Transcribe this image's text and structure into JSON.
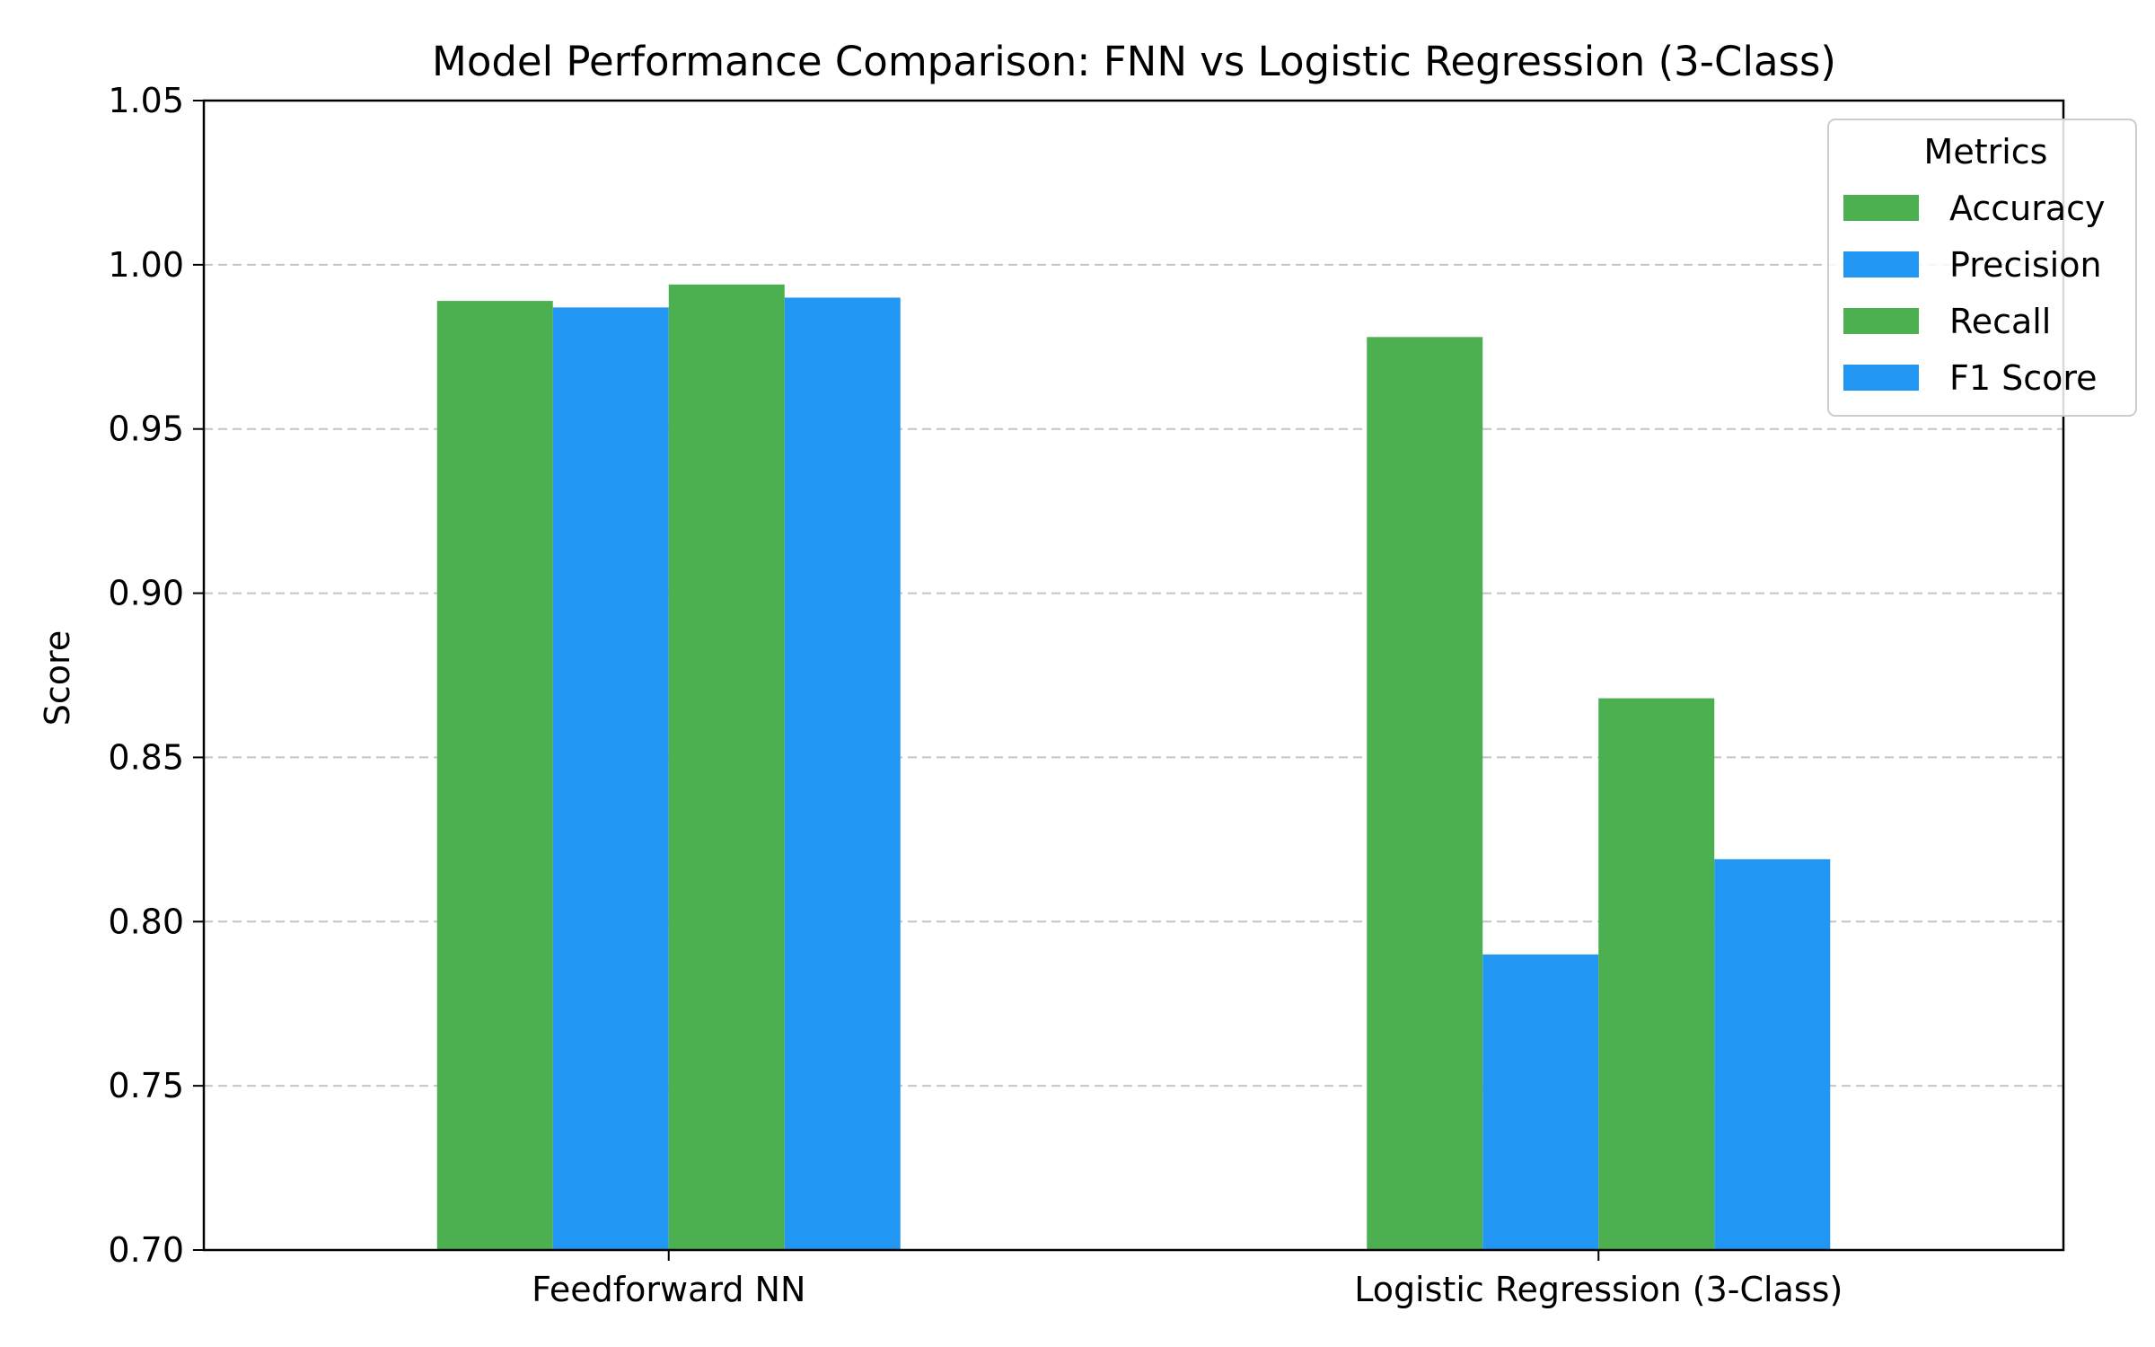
{
  "chart_data": {
    "type": "bar",
    "title": "Model Performance Comparison: FNN vs Logistic Regression (3-Class)",
    "xlabel": "",
    "ylabel": "Score",
    "ylim": [
      0.7,
      1.05
    ],
    "yticks": [
      "0.70",
      "0.75",
      "0.80",
      "0.85",
      "0.90",
      "0.95",
      "1.00",
      "1.05"
    ],
    "grid": "y-dashed",
    "categories": [
      "Feedforward NN",
      "Logistic Regression (3-Class)"
    ],
    "legend": {
      "title": "Metrics",
      "placement": "top-right"
    },
    "series": [
      {
        "name": "Accuracy",
        "color": "#4caf50",
        "values": [
          0.989,
          0.978
        ]
      },
      {
        "name": "Precision",
        "color": "#2196f3",
        "values": [
          0.987,
          0.79
        ]
      },
      {
        "name": "Recall",
        "color": "#4caf50",
        "values": [
          0.994,
          0.868
        ]
      },
      {
        "name": "F1 Score",
        "color": "#2196f3",
        "values": [
          0.99,
          0.819
        ]
      }
    ]
  }
}
